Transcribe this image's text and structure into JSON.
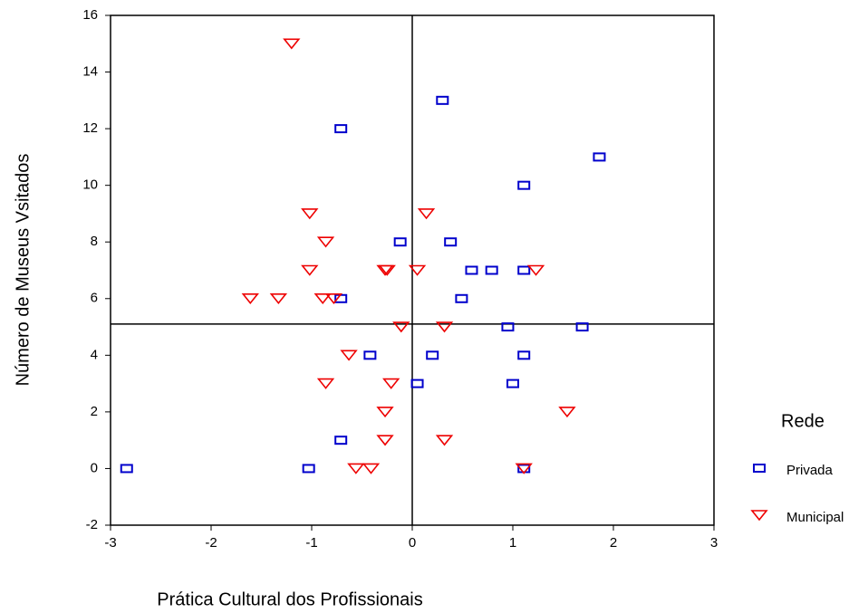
{
  "chart_data": {
    "type": "scatter",
    "xlabel": "Prática Cultural dos Profissionais",
    "ylabel": "Número de Museus Vsitados",
    "xlim": [
      -3,
      3
    ],
    "xticks": [
      -3,
      -2,
      -1,
      0,
      1,
      2,
      3
    ],
    "ylim": [
      -2,
      16
    ],
    "yticks": [
      -2,
      0,
      2,
      4,
      6,
      8,
      10,
      12,
      14,
      16
    ],
    "grid": false,
    "reference_lines": {
      "x": [
        0
      ],
      "y": [
        5.1
      ]
    },
    "legend": {
      "title": "Rede",
      "position": "right"
    },
    "series": [
      {
        "name": "Privada",
        "color": "#0000cc",
        "marker": "square",
        "x": [
          -2.84,
          -1.03,
          -0.71,
          -0.71,
          -0.71,
          -0.42,
          -0.12,
          0.05,
          0.2,
          0.3,
          0.38,
          0.49,
          0.59,
          0.79,
          0.95,
          1.0,
          1.11,
          1.11,
          1.11,
          1.11,
          1.69,
          1.86
        ],
        "values": [
          0,
          0,
          1,
          6,
          12,
          4,
          8,
          3,
          4,
          13,
          8,
          6,
          7,
          7,
          5,
          3,
          0,
          4,
          7,
          10,
          5,
          11
        ]
      },
      {
        "name": "Municipal",
        "color": "#ee0000",
        "marker": "triangle-down",
        "x": [
          -1.2,
          -1.02,
          -1.02,
          -0.86,
          -1.61,
          -1.33,
          -0.89,
          -0.78,
          -0.63,
          -0.86,
          -0.56,
          -0.41,
          -0.27,
          -0.25,
          -0.21,
          -0.27,
          -0.27,
          -0.11,
          0.05,
          0.14,
          0.32,
          0.32,
          1.11,
          1.23,
          1.54
        ],
        "values": [
          15,
          9,
          7,
          8,
          6,
          6,
          6,
          6,
          4,
          3,
          0,
          0,
          7,
          7,
          3,
          2,
          1,
          5,
          7,
          9,
          5,
          1,
          0,
          7,
          2
        ]
      }
    ]
  }
}
